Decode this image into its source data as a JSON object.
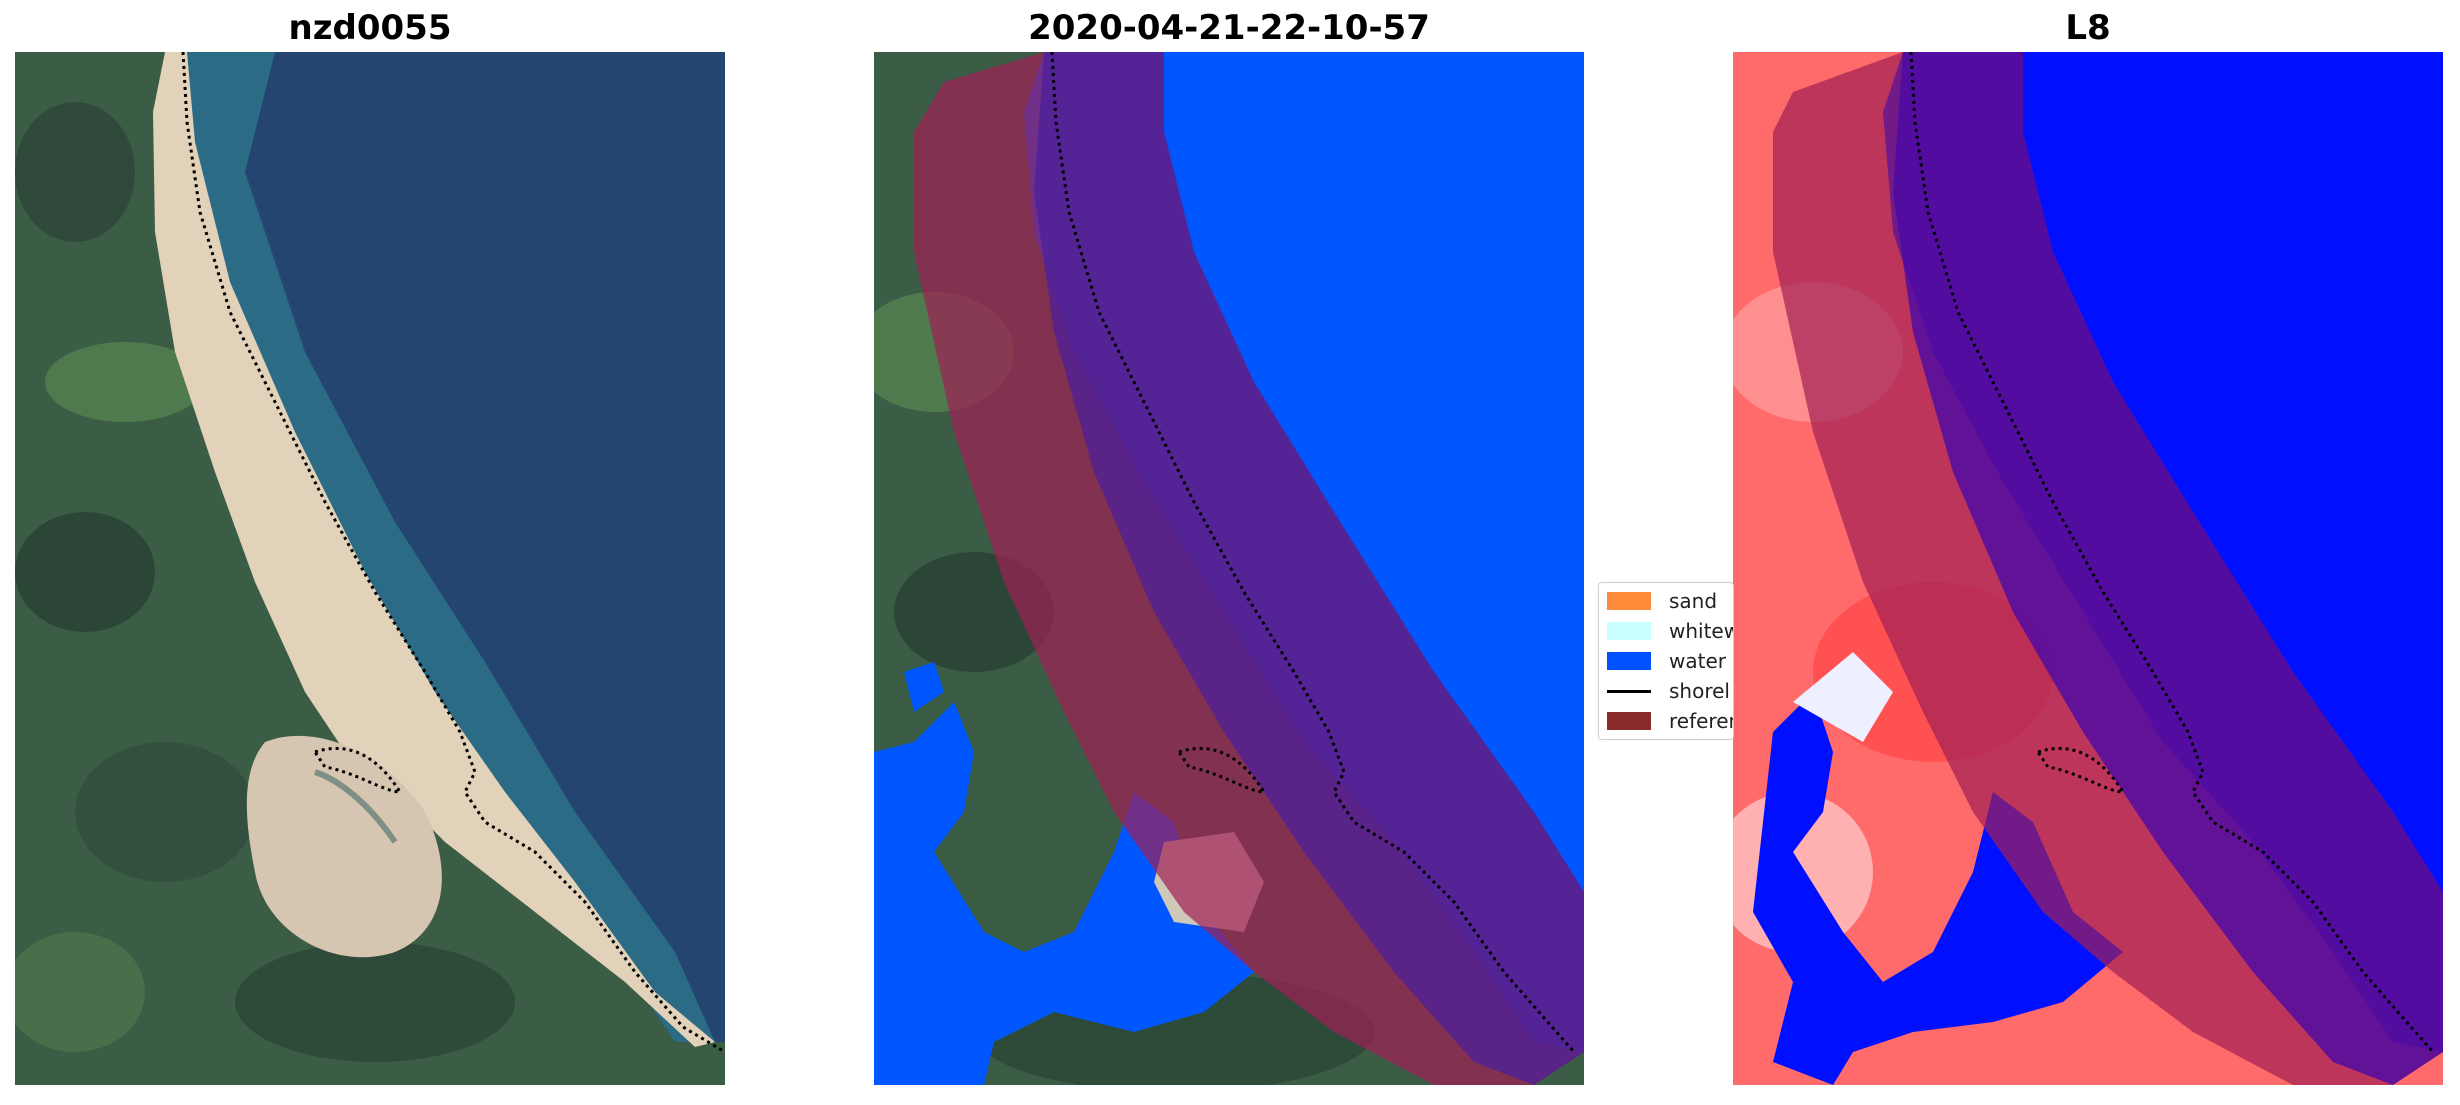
{
  "panels": [
    {
      "title": "nzd0055",
      "image": "rgb-satellite-image"
    },
    {
      "title": "2020-04-21-22-10-57",
      "image": "classified-image"
    },
    {
      "title": "L8",
      "image": "mndwi-image"
    }
  ],
  "legend": {
    "items": [
      {
        "label": "sand",
        "color": "#ff8c3a"
      },
      {
        "label": "whitew",
        "color": "#c9ffff"
      },
      {
        "label": "water",
        "color": "#0052ff"
      },
      {
        "label": "shorel",
        "color": "#000000"
      },
      {
        "label": "referen",
        "color": "#8b2a2a"
      }
    ]
  },
  "colors": {
    "ocean": "#23456f",
    "vegetation": "#3c5e46",
    "classified_water": "#0057ff",
    "reference_buffer": "#a11f55",
    "index_high": "#ff4a4a",
    "index_low": "#0010ff"
  }
}
